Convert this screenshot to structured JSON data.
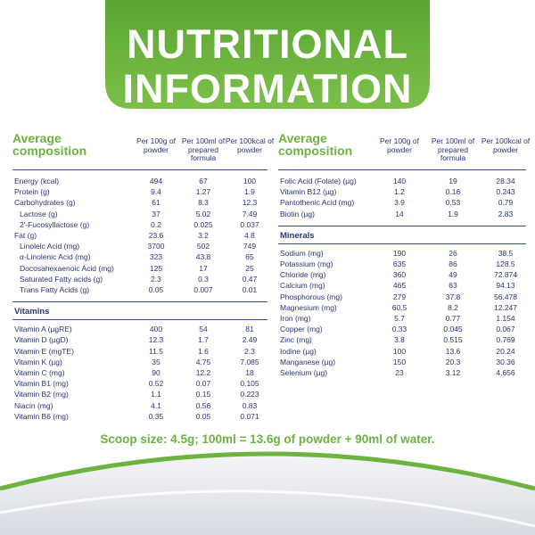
{
  "header": {
    "title": [
      "NUTRITIONAL",
      "INFORMATION"
    ]
  },
  "tables": [
    {
      "label": "Average composition",
      "columns": [
        "Per 100g of powder",
        "Per 100ml of prepared formula",
        "Per 100kcal of powder"
      ],
      "sections": [
        {
          "rows": [
            {
              "label": "Energy (kcal)",
              "values": [
                "494",
                "67",
                "100"
              ]
            },
            {
              "label": "Protein (g)",
              "values": [
                "9.4",
                "1.27",
                "1.9"
              ]
            },
            {
              "label": "Carbohydrates (g)",
              "values": [
                "61",
                "8.3",
                "12.3"
              ]
            },
            {
              "label": "Lactose (g)",
              "values": [
                "37",
                "5.02",
                "7.49"
              ],
              "indent": true
            },
            {
              "label": "2'-Fucosyllactose (g)",
              "values": [
                "0.2",
                "0.025",
                "0.037"
              ],
              "indent": true
            },
            {
              "label": "Fat (g)",
              "values": [
                "23.6",
                "3.2",
                "4.8"
              ]
            },
            {
              "label": "Linoleic Acid (mg)",
              "values": [
                "3700",
                "502",
                "749"
              ],
              "indent": true
            },
            {
              "label": "α-Linolenic Acid (mg)",
              "values": [
                "323",
                "43.8",
                "65"
              ],
              "indent": true
            },
            {
              "label": "Docosahexaenoic Acid (mg)",
              "values": [
                "125",
                "17",
                "25"
              ],
              "indent": true
            },
            {
              "label": "Saturated Fatty acids (g)",
              "values": [
                "2.3",
                "0.3",
                "0.47"
              ],
              "indent": true
            },
            {
              "label": "Trans Fatty Acids (g)",
              "values": [
                "0.05",
                "0.007",
                "0.01"
              ],
              "indent": true
            }
          ]
        },
        {
          "title": "Vitamins",
          "rows": [
            {
              "label": "Vitamin A (µgRE)",
              "values": [
                "400",
                "54",
                "81"
              ]
            },
            {
              "label": "Vitamin D (µgD)",
              "values": [
                "12.3",
                "1.7",
                "2.49"
              ]
            },
            {
              "label": "Vitamin E (mgTE)",
              "values": [
                "11.5",
                "1.6",
                "2.3"
              ]
            },
            {
              "label": "Vitamin K (µg)",
              "values": [
                "35",
                "4.75",
                "7.085"
              ]
            },
            {
              "label": "Vitamin C (mg)",
              "values": [
                "90",
                "12.2",
                "18"
              ]
            },
            {
              "label": "Vitamin B1 (mg)",
              "values": [
                "0.52",
                "0.07",
                "0.105"
              ]
            },
            {
              "label": "Vitamin B2 (mg)",
              "values": [
                "1.1",
                "0.15",
                "0.223"
              ]
            },
            {
              "label": "Niacin (mg)",
              "values": [
                "4.1",
                "0.56",
                "0.83"
              ]
            },
            {
              "label": "Vitamin B6 (mg)",
              "values": [
                "0.35",
                "0.05",
                "0.071"
              ]
            }
          ]
        }
      ]
    },
    {
      "label": "Average composition",
      "columns": [
        "Per 100g of powder",
        "Per 100ml of prepared formula",
        "Per 100kcal of powder"
      ],
      "sections": [
        {
          "rows": [
            {
              "label": "Folic Acid (Folate) (µg)",
              "values": [
                "140",
                "19",
                "28.34"
              ]
            },
            {
              "label": "Vitamin B12 (µg)",
              "values": [
                "1.2",
                "0.16",
                "0.243"
              ]
            },
            {
              "label": "Pantothenic Acid (mg)",
              "values": [
                "3.9",
                "0.53",
                "0.79"
              ]
            },
            {
              "label": "Biotin (µg)",
              "values": [
                "14",
                "1.9",
                "2.83"
              ]
            }
          ]
        },
        {
          "title": "Minerals",
          "rows": [
            {
              "label": "Sodium (mg)",
              "values": [
                "190",
                "26",
                "38.5"
              ]
            },
            {
              "label": "Potassium (mg)",
              "values": [
                "635",
                "86",
                "128.5"
              ]
            },
            {
              "label": "Chloride (mg)",
              "values": [
                "360",
                "49",
                "72.874"
              ]
            },
            {
              "label": "Calcium (mg)",
              "values": [
                "465",
                "63",
                "94.13"
              ]
            },
            {
              "label": "Phosphorous (mg)",
              "values": [
                "279",
                "37.8",
                "56.478"
              ]
            },
            {
              "label": "Magnesium (mg)",
              "values": [
                "60.5",
                "8.2",
                "12.247"
              ]
            },
            {
              "label": "Iron (mg)",
              "values": [
                "5.7",
                "0.77",
                "1.154"
              ]
            },
            {
              "label": "Copper (mg)",
              "values": [
                "0.33",
                "0.045",
                "0.067"
              ]
            },
            {
              "label": "Zinc (mg)",
              "values": [
                "3.8",
                "0.515",
                "0.769"
              ]
            },
            {
              "label": "Iodine (µg)",
              "values": [
                "100",
                "13.6",
                "20.24"
              ]
            },
            {
              "label": "Manganese (µg)",
              "values": [
                "150",
                "20.3",
                "30.36"
              ]
            },
            {
              "label": "Selenium (µg)",
              "values": [
                "23",
                "3.12",
                "4.656"
              ]
            }
          ]
        }
      ]
    }
  ],
  "footer": "Scoop size: 4.5g; 100ml = 13.6g of powder + 90ml of water."
}
